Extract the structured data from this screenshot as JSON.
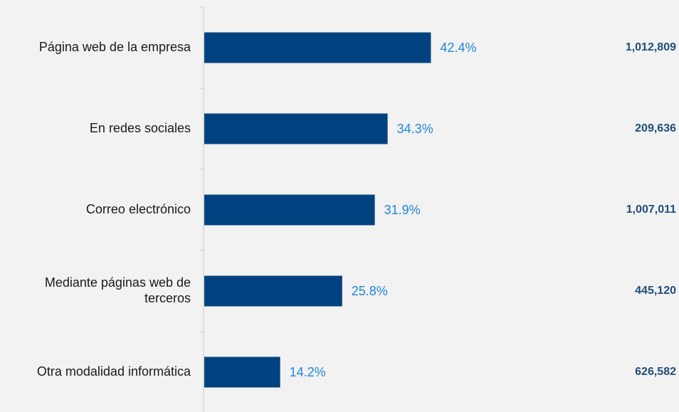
{
  "chart_data": {
    "type": "bar",
    "orientation": "horizontal",
    "categories": [
      [
        "Página web de la empresa"
      ],
      [
        "En redes sociales"
      ],
      [
        "Correo electrónico"
      ],
      [
        "Mediante páginas web de",
        "terceros"
      ],
      [
        "Otra modalidad informática"
      ]
    ],
    "values": [
      42.4,
      34.3,
      31.9,
      25.8,
      14.2
    ],
    "value_labels": [
      "42.4%",
      "34.3%",
      "31.9%",
      "25.8%",
      "14.2%"
    ],
    "totals": [
      "1,012,809",
      "209,636",
      "1,007,011",
      "445,120",
      "626,582"
    ],
    "xlim": [
      0,
      100
    ],
    "grid": false,
    "legend": "none"
  },
  "colors": {
    "bar": "#00427f",
    "value_label": "#1f86d8",
    "total_label": "#1f4e79",
    "axis": "#c8c8c8",
    "background": "#f2f2f2"
  }
}
